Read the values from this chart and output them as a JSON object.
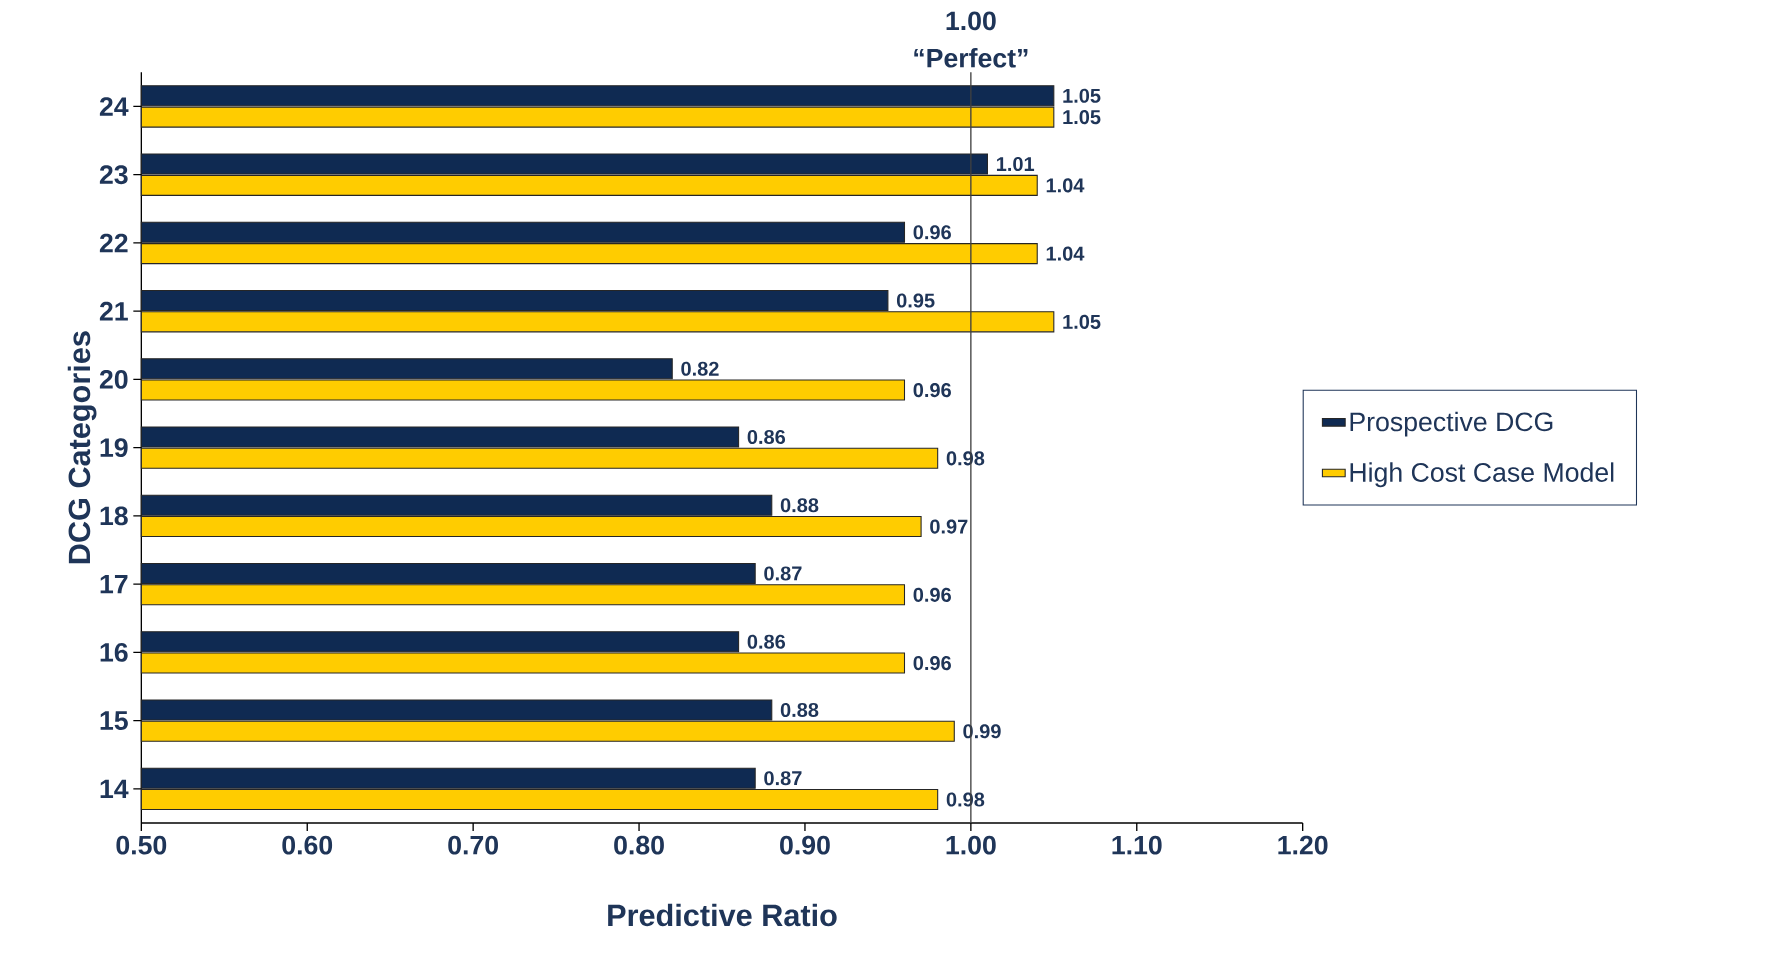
{
  "chart_data": {
    "type": "bar",
    "orientation": "horizontal",
    "categories": [
      "24",
      "23",
      "22",
      "21",
      "20",
      "19",
      "18",
      "17",
      "16",
      "15",
      "14"
    ],
    "series": [
      {
        "name": "Prospective DCG",
        "color": "#0f2a52",
        "values": [
          1.05,
          1.01,
          0.96,
          0.95,
          0.82,
          0.86,
          0.88,
          0.87,
          0.86,
          0.88,
          0.87
        ]
      },
      {
        "name": "High Cost Case Model",
        "color": "#ffcc00",
        "values": [
          1.05,
          1.04,
          1.04,
          1.05,
          0.96,
          0.98,
          0.97,
          0.96,
          0.96,
          0.99,
          0.98
        ]
      }
    ],
    "xlim": [
      0.5,
      1.2
    ],
    "xticks": [
      {
        "value": 0.5,
        "label": "0.50"
      },
      {
        "value": 0.6,
        "label": "0.60"
      },
      {
        "value": 0.7,
        "label": "0.70"
      },
      {
        "value": 0.8,
        "label": "0.80"
      },
      {
        "value": 0.9,
        "label": "0.90"
      },
      {
        "value": 1.0,
        "label": "1.00"
      },
      {
        "value": 1.1,
        "label": "1.10"
      },
      {
        "value": 1.2,
        "label": "1.20"
      }
    ],
    "xlabel": "Predictive Ratio",
    "ylabel": "DCG Categories",
    "ref_lines": [
      {
        "axis": "x",
        "value": 1.0,
        "label": "1.00 “Perfect”"
      }
    ],
    "data_labels": true,
    "legend": "right",
    "grid": false
  }
}
